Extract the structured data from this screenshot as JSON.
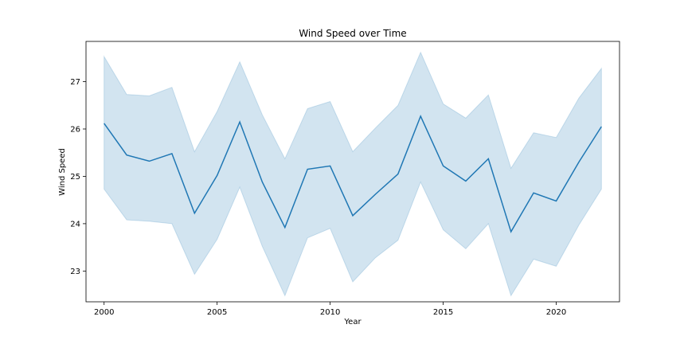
{
  "chart_data": {
    "type": "line",
    "title": "Wind Speed over Time",
    "xlabel": "Year",
    "ylabel": "Wind Speed",
    "xlim": [
      1999.2,
      2022.8
    ],
    "ylim": [
      22.35,
      27.85
    ],
    "xticks": [
      2000,
      2005,
      2010,
      2015,
      2020
    ],
    "yticks": [
      23,
      24,
      25,
      26,
      27
    ],
    "grid": false,
    "legend": "none",
    "series": [
      {
        "x": [
          2000,
          2001,
          2002,
          2003,
          2004,
          2005,
          2006,
          2007,
          2008,
          2009,
          2010,
          2011,
          2012,
          2013,
          2014,
          2015,
          2016,
          2017,
          2018,
          2019,
          2020,
          2021,
          2022
        ],
        "values": [
          26.12,
          25.45,
          25.32,
          25.48,
          24.22,
          25.02,
          26.15,
          24.88,
          23.92,
          25.15,
          25.22,
          24.17,
          24.62,
          25.05,
          26.27,
          25.22,
          24.9,
          25.37,
          23.83,
          24.65,
          24.48,
          25.3,
          26.05
        ],
        "lower": [
          24.73,
          24.08,
          24.05,
          24.0,
          22.93,
          23.67,
          24.77,
          23.52,
          22.48,
          23.7,
          23.9,
          22.77,
          23.28,
          23.65,
          24.88,
          23.87,
          23.47,
          24.0,
          22.48,
          23.25,
          23.1,
          23.97,
          24.73
        ],
        "upper": [
          27.53,
          26.73,
          26.7,
          26.88,
          25.52,
          26.37,
          27.42,
          26.3,
          25.37,
          26.43,
          26.58,
          25.52,
          26.02,
          26.5,
          27.62,
          26.53,
          26.23,
          26.72,
          25.17,
          25.92,
          25.82,
          26.65,
          27.28
        ],
        "color": "#1f77b4",
        "band_color": "#1f77b4"
      }
    ]
  }
}
